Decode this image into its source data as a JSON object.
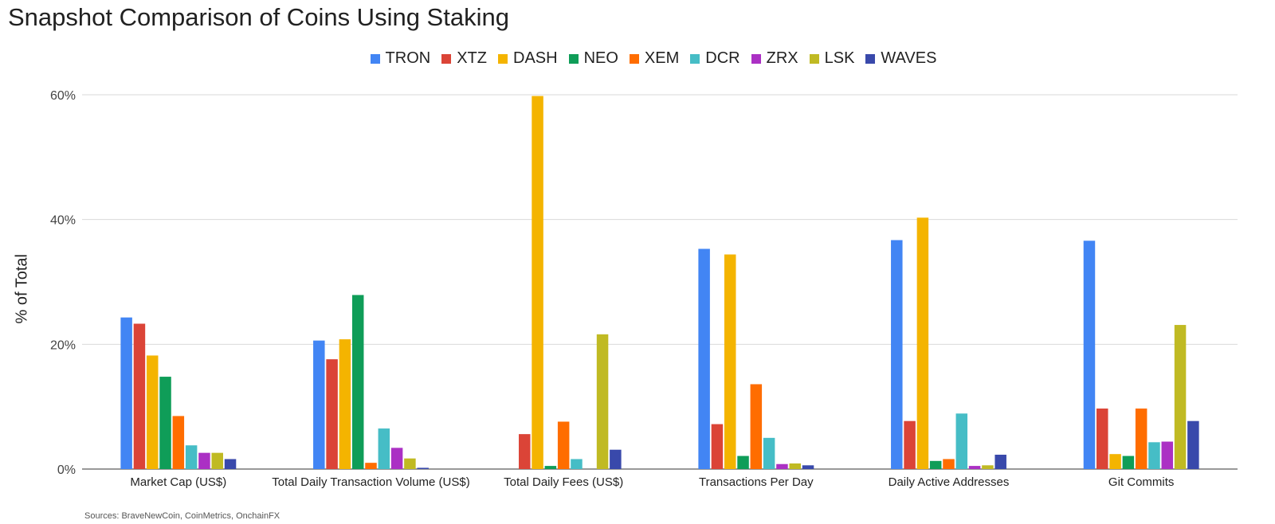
{
  "chart_data": {
    "type": "bar",
    "title": "Snapshot Comparison of Coins Using Staking",
    "xlabel": "",
    "ylabel": "% of Total",
    "ylim": [
      0,
      60
    ],
    "yticks": [
      0,
      20,
      40,
      60
    ],
    "ytick_labels": [
      "0%",
      "20%",
      "40%",
      "60%"
    ],
    "grid": true,
    "legend_position": "top-center",
    "source": "Sources: BraveNewCoin, CoinMetrics, OnchainFX",
    "categories": [
      "Market Cap (US$)",
      "Total Daily Transaction Volume (US$)",
      "Total Daily Fees (US$)",
      "Transactions Per Day",
      "Daily Active Addresses",
      "Git Commits"
    ],
    "series": [
      {
        "name": "TRON",
        "color": "#4285f4",
        "values": [
          24.3,
          20.6,
          0,
          35.3,
          36.7,
          36.6
        ]
      },
      {
        "name": "XTZ",
        "color": "#db4437",
        "values": [
          23.3,
          17.6,
          5.6,
          7.2,
          7.7,
          9.7
        ]
      },
      {
        "name": "DASH",
        "color": "#f4b400",
        "values": [
          18.2,
          20.8,
          59.8,
          34.4,
          40.3,
          2.4
        ]
      },
      {
        "name": "NEO",
        "color": "#0f9d58",
        "values": [
          14.8,
          27.9,
          0.5,
          2.1,
          1.3,
          2.1
        ]
      },
      {
        "name": "XEM",
        "color": "#ff6d00",
        "values": [
          8.5,
          1.0,
          7.6,
          13.6,
          1.6,
          9.7
        ]
      },
      {
        "name": "DCR",
        "color": "#46bdc6",
        "values": [
          3.8,
          6.5,
          1.6,
          5.0,
          8.9,
          4.3
        ]
      },
      {
        "name": "ZRX",
        "color": "#ab30c4",
        "values": [
          2.6,
          3.4,
          0,
          0.8,
          0.5,
          4.4
        ]
      },
      {
        "name": "LSK",
        "color": "#c0ba23",
        "values": [
          2.6,
          1.7,
          21.6,
          0.9,
          0.6,
          23.1
        ]
      },
      {
        "name": "WAVES",
        "color": "#3949ab",
        "values": [
          1.6,
          0.2,
          3.1,
          0.6,
          2.3,
          7.7
        ]
      }
    ]
  }
}
